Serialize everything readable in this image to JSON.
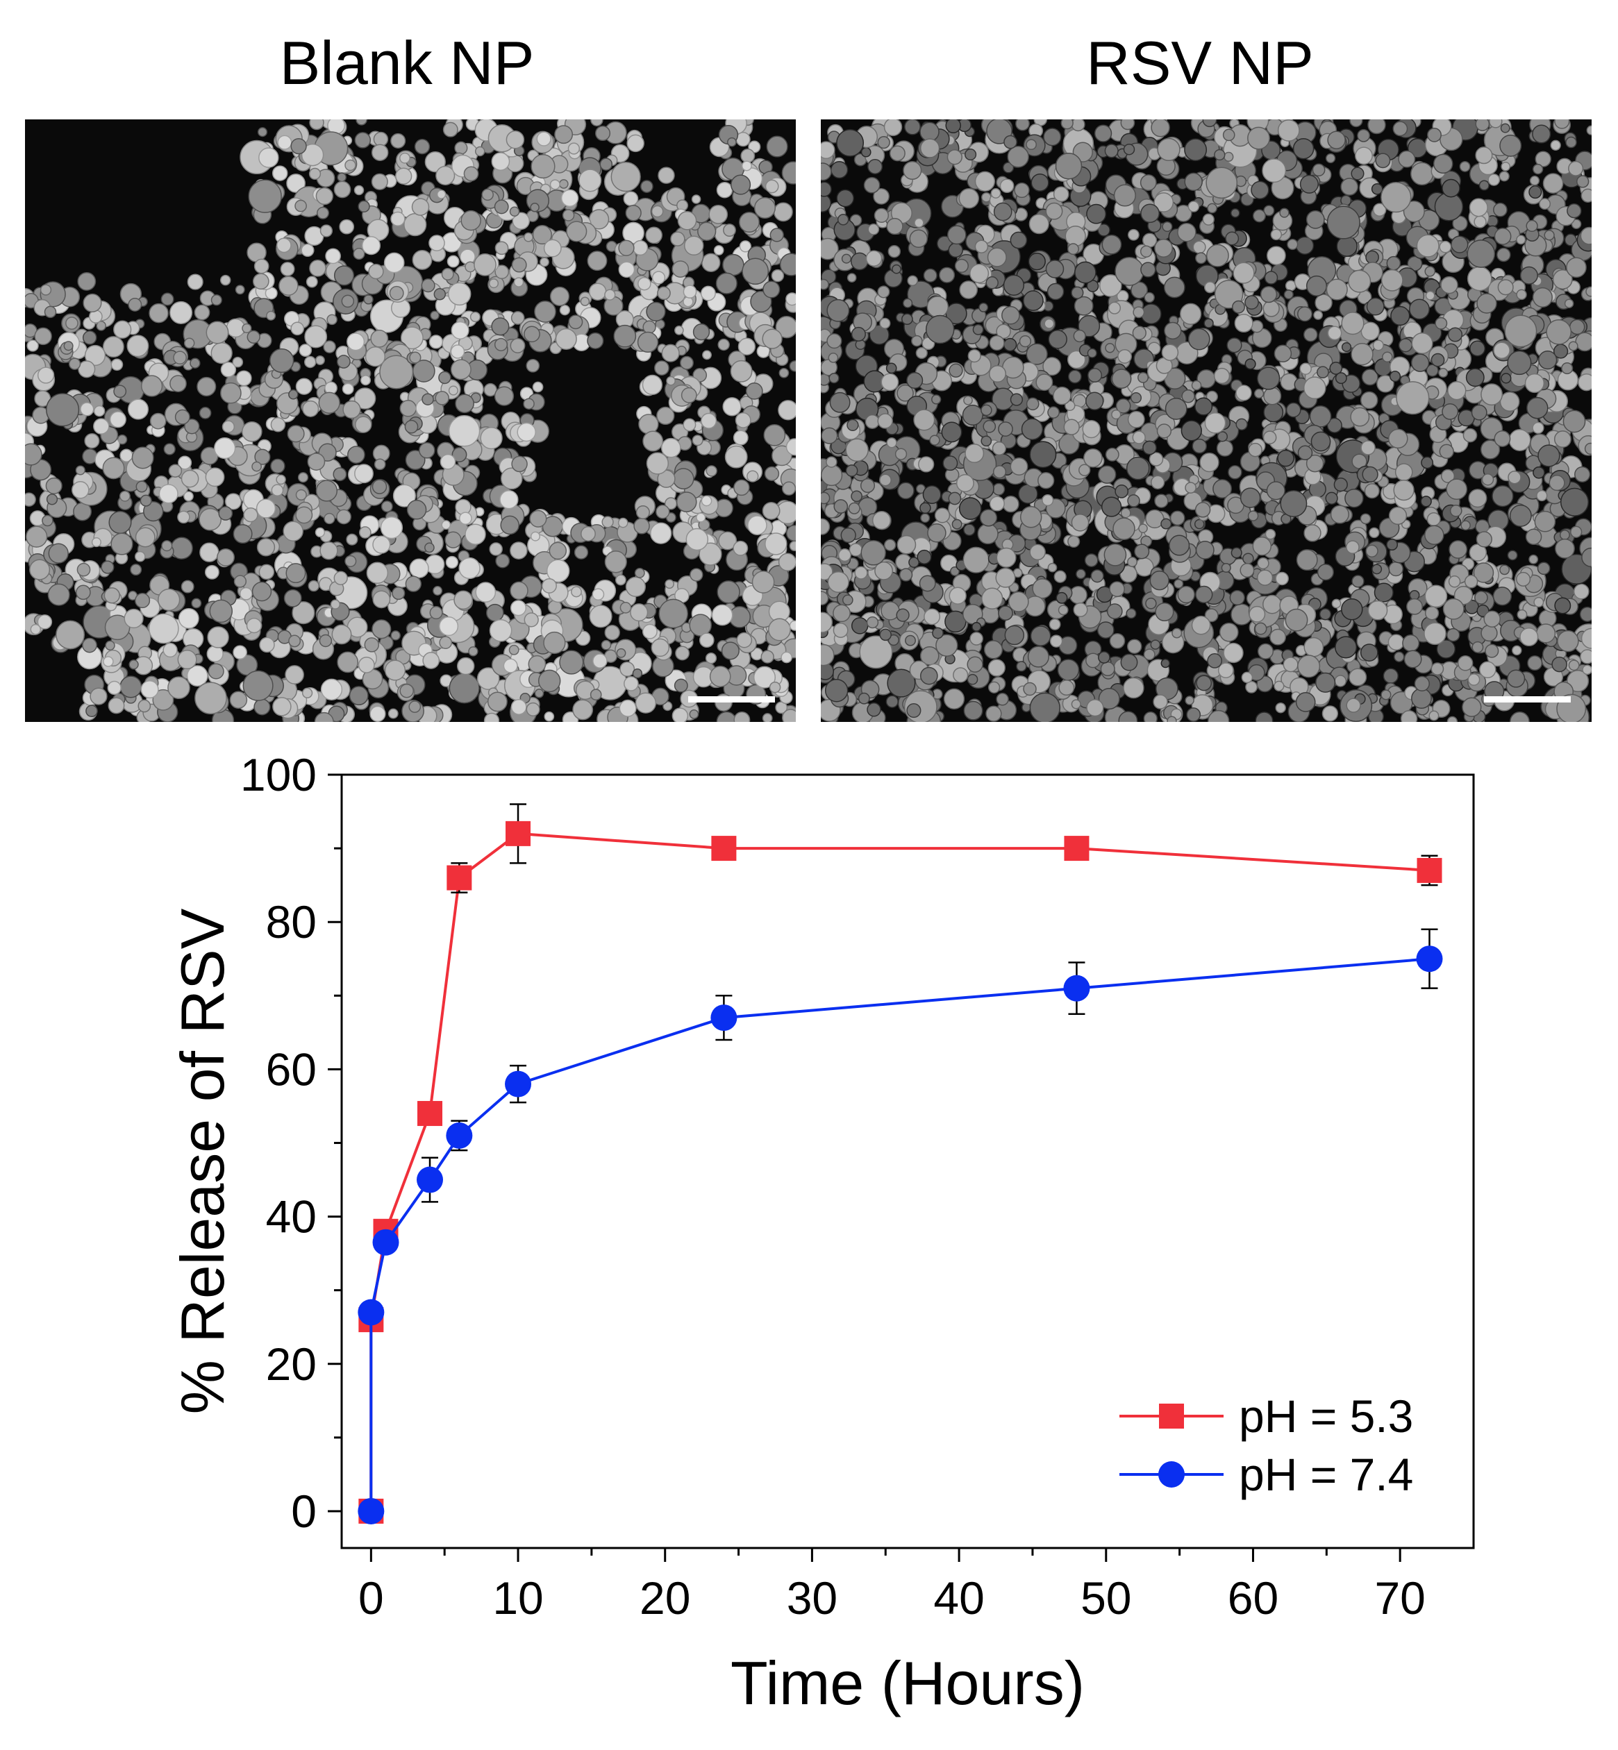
{
  "panels": {
    "left_title": "Blank NP",
    "right_title": "RSV NP"
  },
  "colors": {
    "series_1": "#f0303a",
    "series_2": "#0a2ff0",
    "errorbar": "#000000",
    "sem_background": "#0a0a0a"
  },
  "chart_data": {
    "type": "line",
    "title": "",
    "xlabel": "Time (Hours)",
    "ylabel": "% Release of RSV",
    "xlim": [
      -2,
      75
    ],
    "ylim": [
      -5,
      100
    ],
    "xticks": [
      0,
      10,
      20,
      30,
      40,
      50,
      60,
      70
    ],
    "yticks": [
      0,
      20,
      40,
      60,
      80,
      100
    ],
    "grid": false,
    "legend_position": "bottom-right",
    "series": [
      {
        "name": "pH = 5.3",
        "marker": "square",
        "color": "#f0303a",
        "x": [
          0,
          0,
          1,
          4,
          6,
          10,
          24,
          48,
          72
        ],
        "y": [
          0,
          26,
          38,
          54,
          86,
          92,
          90,
          90,
          87
        ],
        "err": [
          0,
          0.8,
          0.8,
          1.0,
          2.0,
          4.0,
          1.0,
          1.5,
          2.0
        ]
      },
      {
        "name": "pH = 7.4",
        "marker": "circle",
        "color": "#0a2ff0",
        "x": [
          0,
          0,
          1,
          4,
          6,
          10,
          24,
          48,
          72
        ],
        "y": [
          0,
          27,
          36.5,
          45,
          51,
          58,
          67,
          71,
          75
        ],
        "err": [
          0,
          0.8,
          0.8,
          3.0,
          2.0,
          2.5,
          3.0,
          3.5,
          4.0
        ]
      }
    ]
  }
}
